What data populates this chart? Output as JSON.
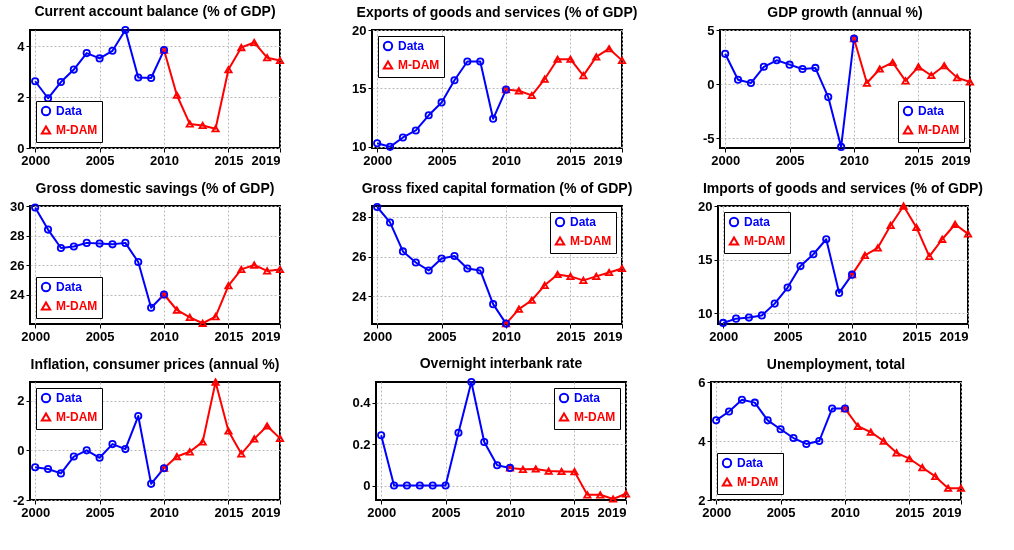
{
  "chart_data": [
    {
      "type": "line",
      "title": "Current account balance (% of GDP)",
      "xlim": [
        1999.6,
        2019
      ],
      "xticks": [
        2000,
        2005,
        2010,
        2015,
        2019
      ],
      "ylim": [
        0,
        4.65
      ],
      "yticks": [
        0,
        2,
        4
      ],
      "grid": true,
      "legend": "bottom left",
      "series": [
        {
          "name": "Data",
          "color": "#0000ff",
          "marker": "circle",
          "x": [
            2000,
            2001,
            2002,
            2003,
            2004,
            2005,
            2006,
            2007,
            2008,
            2009,
            2010
          ],
          "values": [
            2.63,
            1.96,
            2.6,
            3.09,
            3.74,
            3.53,
            3.83,
            4.65,
            2.78,
            2.76,
            3.86
          ]
        },
        {
          "name": "M-DAM",
          "color": "#ff0000",
          "marker": "triangle",
          "x": [
            2010,
            2011,
            2012,
            2013,
            2014,
            2015,
            2016,
            2017,
            2018,
            2019
          ],
          "values": [
            3.86,
            2.08,
            0.95,
            0.89,
            0.76,
            3.09,
            3.96,
            4.16,
            3.56,
            3.45
          ]
        }
      ]
    },
    {
      "type": "line",
      "title": "Exports of goods and services (% of GDP)",
      "xlim": [
        1999.6,
        2019
      ],
      "xticks": [
        2000,
        2005,
        2010,
        2015,
        2019
      ],
      "ylim": [
        9.9,
        20
      ],
      "yticks": [
        10,
        15,
        20
      ],
      "grid": true,
      "legend": "top left",
      "series": [
        {
          "name": "Data",
          "color": "#0000ff",
          "marker": "circle",
          "x": [
            2000,
            2001,
            2002,
            2003,
            2004,
            2005,
            2006,
            2007,
            2008,
            2009,
            2010
          ],
          "values": [
            10.3,
            10.0,
            10.8,
            11.4,
            12.7,
            13.8,
            15.7,
            17.3,
            17.3,
            12.4,
            14.9
          ]
        },
        {
          "name": "M-DAM",
          "color": "#ff0000",
          "marker": "triangle",
          "x": [
            2010,
            2011,
            2012,
            2013,
            2014,
            2015,
            2016,
            2017,
            2018,
            2019
          ],
          "values": [
            14.9,
            14.8,
            14.4,
            15.8,
            17.5,
            17.5,
            16.1,
            17.7,
            18.4,
            17.4
          ]
        }
      ]
    },
    {
      "type": "line",
      "title": "GDP growth (annual %)",
      "xlim": [
        1999.6,
        2019
      ],
      "xticks": [
        2000,
        2005,
        2010,
        2015,
        2019
      ],
      "ylim": [
        -5.9,
        5
      ],
      "yticks": [
        -5,
        0,
        5
      ],
      "grid": true,
      "legend": "bottom right",
      "series": [
        {
          "name": "Data",
          "color": "#0000ff",
          "marker": "circle",
          "x": [
            2000,
            2001,
            2002,
            2003,
            2004,
            2005,
            2006,
            2007,
            2008,
            2009,
            2010
          ],
          "values": [
            2.8,
            0.4,
            0.1,
            1.6,
            2.2,
            1.8,
            1.4,
            1.5,
            -1.2,
            -5.8,
            4.2
          ]
        },
        {
          "name": "M-DAM",
          "color": "#ff0000",
          "marker": "triangle",
          "x": [
            2010,
            2011,
            2012,
            2013,
            2014,
            2015,
            2016,
            2017,
            2018,
            2019
          ],
          "values": [
            4.2,
            0.1,
            1.4,
            2.0,
            0.3,
            1.6,
            0.8,
            1.7,
            0.6,
            0.2
          ]
        }
      ]
    },
    {
      "type": "line",
      "title": "Gross domestic savings (% of GDP)",
      "xlim": [
        1999.6,
        2019
      ],
      "xticks": [
        2000,
        2005,
        2010,
        2015,
        2019
      ],
      "ylim": [
        22,
        30
      ],
      "yticks": [
        24,
        26,
        28,
        30
      ],
      "grid": true,
      "legend": "bottom left",
      "series": [
        {
          "name": "Data",
          "color": "#0000ff",
          "marker": "circle",
          "x": [
            2000,
            2001,
            2002,
            2003,
            2004,
            2005,
            2006,
            2007,
            2008,
            2009,
            2010
          ],
          "values": [
            29.9,
            28.4,
            27.15,
            27.25,
            27.5,
            27.45,
            27.4,
            27.5,
            26.2,
            23.1,
            24.0
          ]
        },
        {
          "name": "M-DAM",
          "color": "#ff0000",
          "marker": "triangle",
          "x": [
            2010,
            2011,
            2012,
            2013,
            2014,
            2015,
            2016,
            2017,
            2018,
            2019
          ],
          "values": [
            24.0,
            22.95,
            22.45,
            22.05,
            22.5,
            24.6,
            25.7,
            26.0,
            25.6,
            25.7
          ]
        }
      ]
    },
    {
      "type": "line",
      "title": "Gross fixed capital formation (% of GDP)",
      "xlim": [
        1999.6,
        2019
      ],
      "xticks": [
        2000,
        2005,
        2010,
        2015,
        2019
      ],
      "ylim": [
        22.6,
        28.55
      ],
      "yticks": [
        24,
        26,
        28
      ],
      "grid": true,
      "legend": "top right",
      "series": [
        {
          "name": "Data",
          "color": "#0000ff",
          "marker": "circle",
          "x": [
            2000,
            2001,
            2002,
            2003,
            2004,
            2005,
            2006,
            2007,
            2008,
            2009,
            2010
          ],
          "values": [
            28.5,
            27.72,
            26.26,
            25.7,
            25.3,
            25.9,
            26.03,
            25.4,
            25.3,
            23.6,
            22.62
          ]
        },
        {
          "name": "M-DAM",
          "color": "#ff0000",
          "marker": "triangle",
          "x": [
            2010,
            2011,
            2012,
            2013,
            2014,
            2015,
            2016,
            2017,
            2018,
            2019
          ],
          "values": [
            22.62,
            23.35,
            23.8,
            24.55,
            25.1,
            25.0,
            24.8,
            25.0,
            25.2,
            25.4
          ]
        }
      ]
    },
    {
      "type": "line",
      "title": "Imports of goods and services (% of GDP)",
      "xlim": [
        1999.6,
        2019
      ],
      "xticks": [
        2000,
        2005,
        2010,
        2015,
        2019
      ],
      "ylim": [
        9,
        20
      ],
      "yticks": [
        10,
        15,
        20
      ],
      "grid": true,
      "legend": "top left",
      "series": [
        {
          "name": "Data",
          "color": "#0000ff",
          "marker": "circle",
          "x": [
            2000,
            2001,
            2002,
            2003,
            2004,
            2005,
            2006,
            2007,
            2008,
            2009,
            2010
          ],
          "values": [
            9.1,
            9.5,
            9.6,
            9.8,
            10.9,
            12.4,
            14.4,
            15.5,
            16.9,
            11.9,
            13.6
          ]
        },
        {
          "name": "M-DAM",
          "color": "#ff0000",
          "marker": "triangle",
          "x": [
            2010,
            2011,
            2012,
            2013,
            2014,
            2015,
            2016,
            2017,
            2018,
            2019
          ],
          "values": [
            13.6,
            15.4,
            16.1,
            18.2,
            20.0,
            18.0,
            15.3,
            16.9,
            18.3,
            17.4
          ]
        }
      ]
    },
    {
      "type": "line",
      "title": "Inflation, consumer prices (annual %)",
      "xlim": [
        1999.6,
        2019
      ],
      "xticks": [
        2000,
        2005,
        2010,
        2015,
        2019
      ],
      "ylim": [
        -2,
        2.75
      ],
      "yticks": [
        -2,
        0,
        2
      ],
      "grid": true,
      "legend": "top left",
      "series": [
        {
          "name": "Data",
          "color": "#0000ff",
          "marker": "circle",
          "x": [
            2000,
            2001,
            2002,
            2003,
            2004,
            2005,
            2006,
            2007,
            2008,
            2009,
            2010
          ],
          "values": [
            -0.68,
            -0.75,
            -0.93,
            -0.25,
            0.0,
            -0.3,
            0.25,
            0.05,
            1.38,
            -1.35,
            -0.72
          ]
        },
        {
          "name": "M-DAM",
          "color": "#ff0000",
          "marker": "triangle",
          "x": [
            2010,
            2011,
            2012,
            2013,
            2014,
            2015,
            2016,
            2017,
            2018,
            2019
          ],
          "values": [
            -0.72,
            -0.25,
            -0.06,
            0.34,
            2.75,
            0.78,
            -0.14,
            0.46,
            0.98,
            0.48
          ]
        }
      ]
    },
    {
      "type": "line",
      "title": "Overnight interbank rate",
      "xlim": [
        1999.6,
        2019
      ],
      "xticks": [
        2000,
        2005,
        2010,
        2015,
        2019
      ],
      "ylim": [
        -0.07,
        0.5
      ],
      "yticks": [
        0,
        0.2,
        0.4
      ],
      "grid": true,
      "legend": "top right",
      "series": [
        {
          "name": "Data",
          "color": "#0000ff",
          "marker": "circle",
          "x": [
            2000,
            2001,
            2002,
            2003,
            2004,
            2005,
            2006,
            2007,
            2008,
            2009,
            2010
          ],
          "values": [
            0.243,
            0,
            0,
            0,
            0,
            0,
            0.255,
            0.5,
            0.21,
            0.098,
            0.085
          ]
        },
        {
          "name": "M-DAM",
          "color": "#ff0000",
          "marker": "triangle",
          "x": [
            2010,
            2011,
            2012,
            2013,
            2014,
            2015,
            2016,
            2017,
            2018,
            2019
          ],
          "values": [
            0.085,
            0.078,
            0.08,
            0.07,
            0.068,
            0.067,
            -0.045,
            -0.045,
            -0.065,
            -0.04
          ]
        }
      ]
    },
    {
      "type": "line",
      "title": "Unemployment, total",
      "xlim": [
        1999.6,
        2019
      ],
      "xticks": [
        2000,
        2005,
        2010,
        2015,
        2019
      ],
      "ylim": [
        2,
        6
      ],
      "yticks": [
        2,
        4,
        6
      ],
      "grid": true,
      "legend": "bottom left",
      "series": [
        {
          "name": "Data",
          "color": "#0000ff",
          "marker": "circle",
          "x": [
            2000,
            2001,
            2002,
            2003,
            2004,
            2005,
            2006,
            2007,
            2008,
            2009,
            2010
          ],
          "values": [
            4.7,
            5.0,
            5.4,
            5.3,
            4.7,
            4.4,
            4.1,
            3.9,
            4.0,
            5.1,
            5.1
          ]
        },
        {
          "name": "M-DAM",
          "color": "#ff0000",
          "marker": "triangle",
          "x": [
            2010,
            2011,
            2012,
            2013,
            2014,
            2015,
            2016,
            2017,
            2018,
            2019
          ],
          "values": [
            5.1,
            4.5,
            4.3,
            4.0,
            3.6,
            3.4,
            3.1,
            2.8,
            2.4,
            2.4
          ]
        }
      ]
    }
  ]
}
